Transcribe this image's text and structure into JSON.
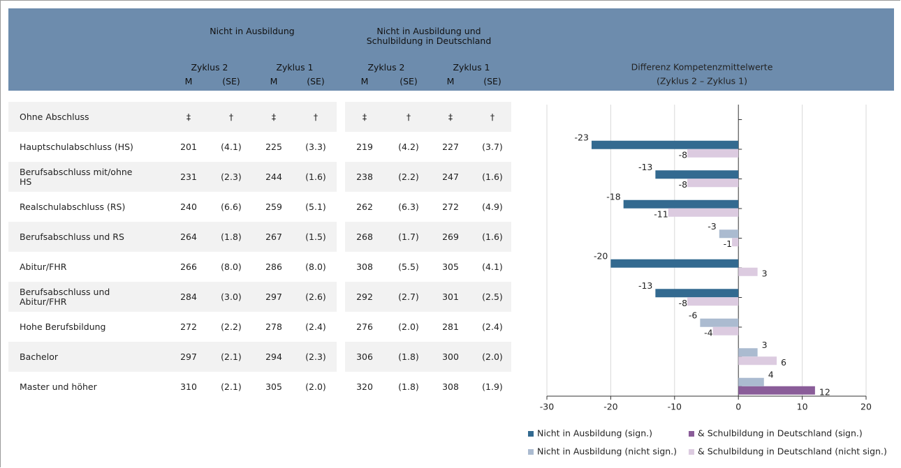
{
  "table": {
    "groups": [
      "Nicht in Ausbildung",
      "Nicht in Ausbildung und\nSchulbildung in Deutschland"
    ],
    "cycles": [
      "Zyklus 2",
      "Zyklus 1",
      "Zyklus 2",
      "Zyklus 1"
    ],
    "stats": [
      "M",
      "(SE)",
      "M",
      "(SE)",
      "M",
      "(SE)",
      "M",
      "(SE)"
    ],
    "rows": [
      {
        "label": "Ohne Abschluss",
        "cells": [
          "‡",
          "†",
          "‡",
          "†",
          "‡",
          "†",
          "‡",
          "†"
        ]
      },
      {
        "label": "Hauptschulabschluss (HS)",
        "cells": [
          "201",
          "(4.1)",
          "225",
          "(3.3)",
          "219",
          "(4.2)",
          "227",
          "(3.7)"
        ]
      },
      {
        "label": "Berufsabschluss mit/ohne HS",
        "cells": [
          "231",
          "(2.3)",
          "244",
          "(1.6)",
          "238",
          "(2.2)",
          "247",
          "(1.6)"
        ]
      },
      {
        "label": "Realschulabschluss (RS)",
        "cells": [
          "240",
          "(6.6)",
          "259",
          "(5.1)",
          "262",
          "(6.3)",
          "272",
          "(4.9)"
        ]
      },
      {
        "label": "Berufsabschluss und RS",
        "cells": [
          "264",
          "(1.8)",
          "267",
          "(1.5)",
          "268",
          "(1.7)",
          "269",
          "(1.6)"
        ]
      },
      {
        "label": "Abitur/FHR",
        "cells": [
          "266",
          "(8.0)",
          "286",
          "(8.0)",
          "308",
          "(5.5)",
          "305",
          "(4.1)"
        ]
      },
      {
        "label": "Berufsabschluss und Abitur/FHR",
        "cells": [
          "284",
          "(3.0)",
          "297",
          "(2.6)",
          "292",
          "(2.7)",
          "301",
          "(2.5)"
        ]
      },
      {
        "label": "Hohe Berufsbildung",
        "cells": [
          "272",
          "(2.2)",
          "278",
          "(2.4)",
          "276",
          "(2.0)",
          "281",
          "(2.4)"
        ]
      },
      {
        "label": "Bachelor",
        "cells": [
          "297",
          "(2.1)",
          "294",
          "(2.3)",
          "306",
          "(1.8)",
          "300",
          "(2.0)"
        ]
      },
      {
        "label": "Master und höher",
        "cells": [
          "310",
          "(2.1)",
          "305",
          "(2.0)",
          "320",
          "(1.8)",
          "308",
          "(1.9)"
        ]
      }
    ]
  },
  "chart_data": {
    "type": "bar",
    "orientation": "horizontal",
    "title": "Differenz Kompetenzmittelwerte",
    "subtitle": "(Zyklus 2 – Zyklus 1)",
    "xlim": [
      -30,
      20
    ],
    "xticks": [
      -30,
      -20,
      -10,
      0,
      10,
      20
    ],
    "grid": true,
    "legend": "bottom",
    "series": [
      {
        "name": "Nicht in Ausbildung (sign.)",
        "color": "#336a90",
        "values": [
          null,
          -23,
          -13,
          -18,
          null,
          -20,
          -13,
          null,
          null,
          null
        ]
      },
      {
        "name": "& Schulbildung in Deutschland (sign.)",
        "color": "#8a5d99",
        "values": [
          null,
          null,
          null,
          null,
          null,
          null,
          null,
          null,
          null,
          12
        ]
      },
      {
        "name": "Nicht in Ausbildung (nicht sign.)",
        "color": "#abbbd0",
        "values": [
          null,
          null,
          null,
          null,
          -3,
          null,
          null,
          -6,
          3,
          4
        ]
      },
      {
        "name": "& Schulbildung in Deutschland (nicht sign.)",
        "color": "#dccbe0",
        "values": [
          null,
          -8,
          -8,
          -11,
          -1,
          3,
          -8,
          -4,
          6,
          null
        ]
      }
    ]
  }
}
